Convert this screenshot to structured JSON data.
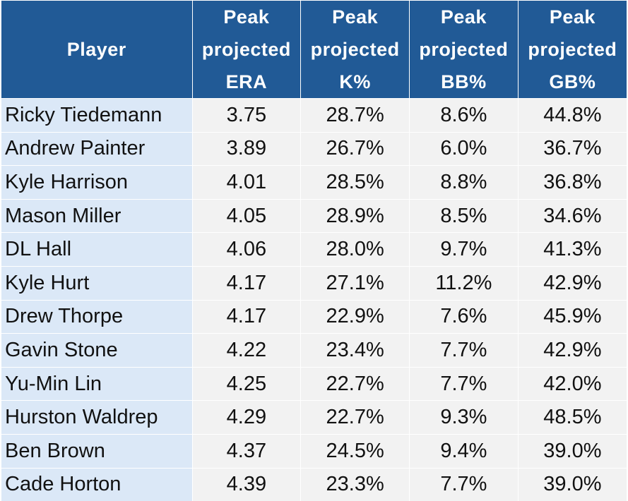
{
  "chart_data": {
    "type": "table",
    "columns": [
      {
        "key": "player",
        "label_lines": [
          "Player"
        ]
      },
      {
        "key": "era",
        "label_lines": [
          "Peak",
          "projected",
          "ERA"
        ]
      },
      {
        "key": "k_pct",
        "label_lines": [
          "Peak",
          "projected",
          "K%"
        ]
      },
      {
        "key": "bb_pct",
        "label_lines": [
          "Peak",
          "projected",
          "BB%"
        ]
      },
      {
        "key": "gb_pct",
        "label_lines": [
          "Peak",
          "projected",
          "GB%"
        ]
      }
    ],
    "rows": [
      {
        "player": "Ricky Tiedemann",
        "era": "3.75",
        "k_pct": "28.7%",
        "bb_pct": "8.6%",
        "gb_pct": "44.8%"
      },
      {
        "player": "Andrew Painter",
        "era": "3.89",
        "k_pct": "26.7%",
        "bb_pct": "6.0%",
        "gb_pct": "36.7%"
      },
      {
        "player": "Kyle Harrison",
        "era": "4.01",
        "k_pct": "28.5%",
        "bb_pct": "8.8%",
        "gb_pct": "36.8%"
      },
      {
        "player": "Mason Miller",
        "era": "4.05",
        "k_pct": "28.9%",
        "bb_pct": "8.5%",
        "gb_pct": "34.6%"
      },
      {
        "player": "DL Hall",
        "era": "4.06",
        "k_pct": "28.0%",
        "bb_pct": "9.7%",
        "gb_pct": "41.3%"
      },
      {
        "player": "Kyle Hurt",
        "era": "4.17",
        "k_pct": "27.1%",
        "bb_pct": "11.2%",
        "gb_pct": "42.9%"
      },
      {
        "player": "Drew Thorpe",
        "era": "4.17",
        "k_pct": "22.9%",
        "bb_pct": "7.6%",
        "gb_pct": "45.9%"
      },
      {
        "player": "Gavin Stone",
        "era": "4.22",
        "k_pct": "23.4%",
        "bb_pct": "7.7%",
        "gb_pct": "42.9%"
      },
      {
        "player": "Yu-Min Lin",
        "era": "4.25",
        "k_pct": "22.7%",
        "bb_pct": "7.7%",
        "gb_pct": "42.0%"
      },
      {
        "player": "Hurston Waldrep",
        "era": "4.29",
        "k_pct": "22.7%",
        "bb_pct": "9.3%",
        "gb_pct": "48.5%"
      },
      {
        "player": "Ben Brown",
        "era": "4.37",
        "k_pct": "24.5%",
        "bb_pct": "9.4%",
        "gb_pct": "39.0%"
      },
      {
        "player": "Cade Horton",
        "era": "4.39",
        "k_pct": "23.3%",
        "bb_pct": "7.7%",
        "gb_pct": "39.0%"
      }
    ]
  },
  "colors": {
    "header_bg": "#215a96",
    "header_text": "#ffffff",
    "player_col_bg": "#dbe8f7",
    "stat_col_bg": "#f2f2f2",
    "body_text": "#111111"
  }
}
